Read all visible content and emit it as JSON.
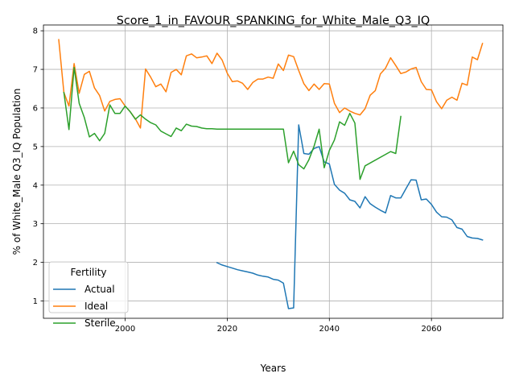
{
  "chart_data": {
    "type": "line",
    "title": "Score_1_in_FAVOUR_SPANKING_for_White_Male_Q3_IQ",
    "xlabel": "Years",
    "ylabel": "% of White_Male Q3_IQ Population",
    "xlim": [
      1984,
      2074
    ],
    "ylim": [
      0.55,
      8.15
    ],
    "xticks": [
      2000,
      2020,
      2040,
      2060
    ],
    "yticks": [
      1,
      2,
      3,
      4,
      5,
      6,
      7,
      8
    ],
    "grid": true,
    "legend": {
      "title": "Fertility",
      "position": "bottom-left"
    },
    "series": [
      {
        "name": "Actual",
        "color": "#1f77b4",
        "x": [
          2018,
          2019,
          2020,
          2021,
          2022,
          2023,
          2024,
          2025,
          2026,
          2027,
          2028,
          2029,
          2030,
          2031,
          2032,
          2033,
          2034,
          2035,
          2036,
          2037,
          2038,
          2039,
          2040,
          2041,
          2042,
          2043,
          2044,
          2045,
          2046,
          2047,
          2048,
          2049,
          2050,
          2051,
          2052,
          2053,
          2054,
          2055,
          2056,
          2057,
          2058,
          2059,
          2060,
          2061,
          2062,
          2063,
          2064,
          2065,
          2066,
          2067,
          2068,
          2069,
          2070
        ],
        "y": [
          1.99,
          1.93,
          1.89,
          1.85,
          1.81,
          1.78,
          1.75,
          1.72,
          1.67,
          1.64,
          1.62,
          1.56,
          1.54,
          1.46,
          0.8,
          0.82,
          5.56,
          4.82,
          4.8,
          4.95,
          5.0,
          4.6,
          4.55,
          4.02,
          3.87,
          3.79,
          3.62,
          3.58,
          3.41,
          3.7,
          3.52,
          3.43,
          3.35,
          3.28,
          3.73,
          3.67,
          3.67,
          3.91,
          4.14,
          4.13,
          3.62,
          3.64,
          3.5,
          3.3,
          3.18,
          3.17,
          3.1,
          2.9,
          2.86,
          2.67,
          2.63,
          2.62,
          2.58
        ]
      },
      {
        "name": "Ideal",
        "color": "#ff7f0e",
        "x": [
          1987,
          1988,
          1989,
          1990,
          1991,
          1992,
          1993,
          1994,
          1995,
          1996,
          1997,
          1998,
          1999,
          2000,
          2001,
          2002,
          2003,
          2004,
          2005,
          2006,
          2007,
          2008,
          2009,
          2010,
          2011,
          2012,
          2013,
          2014,
          2015,
          2016,
          2017,
          2018,
          2019,
          2020,
          2021,
          2022,
          2023,
          2024,
          2025,
          2026,
          2027,
          2028,
          2029,
          2030,
          2031,
          2032,
          2033,
          2034,
          2035,
          2036,
          2037,
          2038,
          2039,
          2040,
          2041,
          2042,
          2043,
          2044,
          2045,
          2046,
          2047,
          2048,
          2049,
          2050,
          2051,
          2052,
          2053,
          2054,
          2055,
          2056,
          2057,
          2058,
          2059,
          2060,
          2061,
          2062,
          2063,
          2064,
          2065,
          2066,
          2067,
          2068,
          2069,
          2070
        ],
        "y": [
          7.77,
          6.4,
          6.05,
          7.15,
          6.38,
          6.87,
          6.95,
          6.52,
          6.32,
          5.92,
          6.17,
          6.22,
          6.24,
          6.05,
          5.9,
          5.72,
          5.48,
          7.01,
          6.8,
          6.55,
          6.62,
          6.42,
          6.92,
          7.0,
          6.86,
          7.35,
          7.4,
          7.3,
          7.32,
          7.35,
          7.15,
          7.42,
          7.24,
          6.9,
          6.68,
          6.7,
          6.64,
          6.48,
          6.66,
          6.75,
          6.75,
          6.8,
          6.77,
          7.14,
          6.97,
          7.37,
          7.33,
          6.97,
          6.63,
          6.45,
          6.62,
          6.48,
          6.63,
          6.62,
          6.12,
          5.88,
          6.0,
          5.92,
          5.86,
          5.82,
          5.98,
          6.33,
          6.45,
          6.88,
          7.03,
          7.3,
          7.1,
          6.89,
          6.93,
          7.01,
          7.05,
          6.68,
          6.48,
          6.47,
          6.16,
          5.98,
          6.2,
          6.28,
          6.2,
          6.64,
          6.59,
          7.32,
          7.25,
          7.67
        ]
      },
      {
        "name": "Sterile",
        "color": "#2ca02c",
        "x": [
          1988,
          1989,
          1990,
          1991,
          1992,
          1993,
          1994,
          1995,
          1996,
          1997,
          1998,
          1999,
          2000,
          2001,
          2002,
          2003,
          2004,
          2005,
          2006,
          2007,
          2008,
          2009,
          2010,
          2011,
          2012,
          2013,
          2014,
          2015,
          2016,
          2017,
          2018,
          2031,
          2032,
          2033,
          2034,
          2035,
          2036,
          2037,
          2038,
          2039,
          2040,
          2041,
          2042,
          2043,
          2044,
          2045,
          2046,
          2047,
          2052,
          2053,
          2054
        ],
        "y": [
          6.4,
          5.44,
          7.05,
          6.12,
          5.75,
          5.25,
          5.34,
          5.15,
          5.34,
          6.08,
          5.86,
          5.86,
          6.05,
          5.9,
          5.71,
          5.82,
          5.71,
          5.62,
          5.56,
          5.4,
          5.33,
          5.26,
          5.48,
          5.41,
          5.58,
          5.53,
          5.52,
          5.48,
          5.46,
          5.46,
          5.45,
          5.45,
          4.58,
          4.88,
          4.53,
          4.42,
          4.66,
          5.01,
          5.45,
          4.45,
          4.9,
          5.17,
          5.64,
          5.55,
          5.86,
          5.61,
          4.15,
          4.5,
          4.87,
          4.82,
          5.78
        ]
      }
    ]
  }
}
